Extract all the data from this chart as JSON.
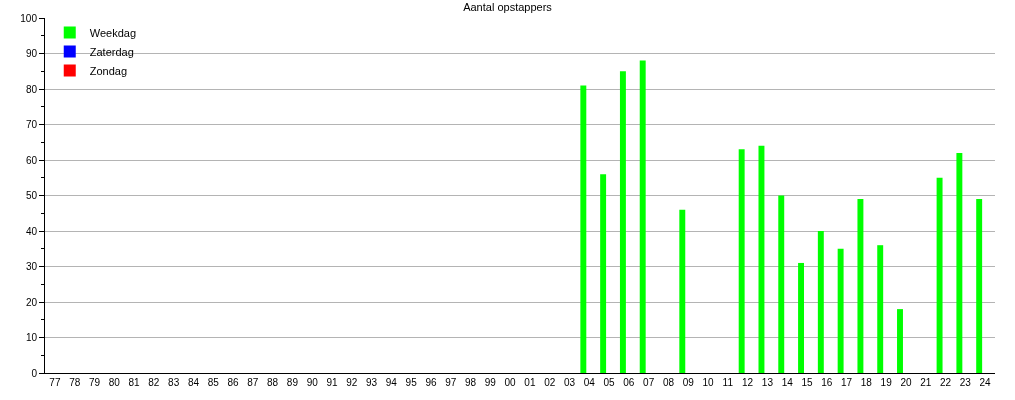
{
  "chart_data": {
    "type": "bar",
    "title": "Aantal opstappers",
    "categories": [
      "77",
      "78",
      "79",
      "80",
      "81",
      "82",
      "83",
      "84",
      "85",
      "86",
      "87",
      "88",
      "89",
      "90",
      "91",
      "92",
      "93",
      "94",
      "95",
      "96",
      "97",
      "98",
      "99",
      "00",
      "01",
      "02",
      "03",
      "04",
      "05",
      "06",
      "07",
      "08",
      "09",
      "10",
      "11",
      "12",
      "13",
      "14",
      "15",
      "16",
      "17",
      "18",
      "19",
      "20",
      "21",
      "22",
      "23",
      "24"
    ],
    "series": [
      {
        "name": "Weekdag",
        "color": "#00ff00",
        "values": [
          null,
          null,
          null,
          null,
          null,
          null,
          null,
          null,
          null,
          null,
          null,
          null,
          null,
          null,
          null,
          null,
          null,
          null,
          null,
          null,
          null,
          null,
          null,
          null,
          null,
          null,
          null,
          81,
          56,
          85,
          88,
          null,
          46,
          null,
          null,
          63,
          64,
          50,
          31,
          40,
          35,
          49,
          36,
          18,
          null,
          55,
          62,
          49
        ]
      },
      {
        "name": "Zaterdag",
        "color": "#0000ff",
        "values": [
          null,
          null,
          null,
          null,
          null,
          null,
          null,
          null,
          null,
          null,
          null,
          null,
          null,
          null,
          null,
          null,
          null,
          null,
          null,
          null,
          null,
          null,
          null,
          null,
          null,
          null,
          null,
          null,
          null,
          null,
          null,
          null,
          null,
          null,
          null,
          null,
          null,
          null,
          null,
          null,
          null,
          null,
          null,
          null,
          null,
          null,
          null,
          null
        ]
      },
      {
        "name": "Zondag",
        "color": "#ff0000",
        "values": [
          null,
          null,
          null,
          null,
          null,
          null,
          null,
          null,
          null,
          null,
          null,
          null,
          null,
          null,
          null,
          null,
          null,
          null,
          null,
          null,
          null,
          null,
          null,
          null,
          null,
          null,
          null,
          null,
          null,
          null,
          null,
          null,
          null,
          null,
          null,
          null,
          null,
          null,
          null,
          null,
          null,
          null,
          null,
          null,
          null,
          null,
          null,
          null
        ]
      }
    ],
    "ylim": [
      0,
      100
    ],
    "yticks": [
      0,
      {
        "value": 5,
        "label": null
      },
      10,
      {
        "value": 15,
        "label": null
      },
      20,
      {
        "value": 25,
        "label": null
      },
      30,
      {
        "value": 35,
        "label": null
      },
      40,
      {
        "value": 45,
        "label": null
      },
      50,
      {
        "value": 55,
        "label": null
      },
      60,
      {
        "value": 65,
        "label": null
      },
      70,
      {
        "value": 75,
        "label": null
      },
      80,
      {
        "value": 85,
        "label": null
      },
      90,
      {
        "value": 95,
        "label": null
      },
      100
    ],
    "grid": "y",
    "legend": "top left"
  }
}
